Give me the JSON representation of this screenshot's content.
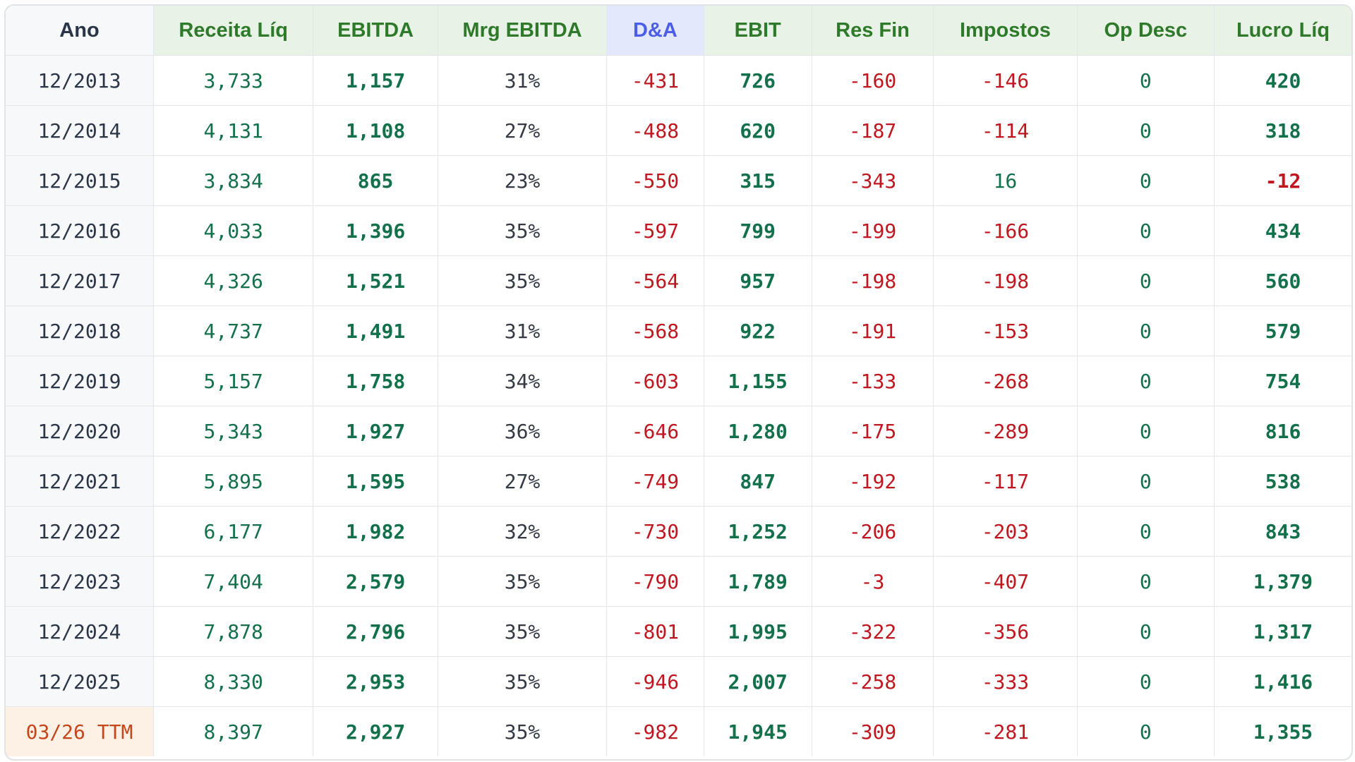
{
  "headers": [
    "Ano",
    "Receita Líq",
    "EBITDA",
    "Mrg EBITDA",
    "D&A",
    "EBIT",
    "Res Fin",
    "Impostos",
    "Op Desc",
    "Lucro Líq"
  ],
  "colors": {
    "header_green_bg": "#e8f2e6",
    "header_green_text": "#2f7a2a",
    "header_da_bg": "#e4e8fd",
    "header_da_text": "#4d5ee6",
    "positive": "#12714a",
    "negative": "#c0161f",
    "neutral": "#333a44",
    "ttm_bg": "#fdf1e6",
    "ttm_text": "#c4471c"
  },
  "rows": [
    {
      "ano": "12/2013",
      "receita": "3,733",
      "ebitda": "1,157",
      "mrg": "31%",
      "da": "-431",
      "ebit": "726",
      "resfin": "-160",
      "impostos": "-146",
      "opdesc": "0",
      "lucro": "420"
    },
    {
      "ano": "12/2014",
      "receita": "4,131",
      "ebitda": "1,108",
      "mrg": "27%",
      "da": "-488",
      "ebit": "620",
      "resfin": "-187",
      "impostos": "-114",
      "opdesc": "0",
      "lucro": "318"
    },
    {
      "ano": "12/2015",
      "receita": "3,834",
      "ebitda": "865",
      "mrg": "23%",
      "da": "-550",
      "ebit": "315",
      "resfin": "-343",
      "impostos": "16",
      "opdesc": "0",
      "lucro": "-12"
    },
    {
      "ano": "12/2016",
      "receita": "4,033",
      "ebitda": "1,396",
      "mrg": "35%",
      "da": "-597",
      "ebit": "799",
      "resfin": "-199",
      "impostos": "-166",
      "opdesc": "0",
      "lucro": "434"
    },
    {
      "ano": "12/2017",
      "receita": "4,326",
      "ebitda": "1,521",
      "mrg": "35%",
      "da": "-564",
      "ebit": "957",
      "resfin": "-198",
      "impostos": "-198",
      "opdesc": "0",
      "lucro": "560"
    },
    {
      "ano": "12/2018",
      "receita": "4,737",
      "ebitda": "1,491",
      "mrg": "31%",
      "da": "-568",
      "ebit": "922",
      "resfin": "-191",
      "impostos": "-153",
      "opdesc": "0",
      "lucro": "579"
    },
    {
      "ano": "12/2019",
      "receita": "5,157",
      "ebitda": "1,758",
      "mrg": "34%",
      "da": "-603",
      "ebit": "1,155",
      "resfin": "-133",
      "impostos": "-268",
      "opdesc": "0",
      "lucro": "754"
    },
    {
      "ano": "12/2020",
      "receita": "5,343",
      "ebitda": "1,927",
      "mrg": "36%",
      "da": "-646",
      "ebit": "1,280",
      "resfin": "-175",
      "impostos": "-289",
      "opdesc": "0",
      "lucro": "816"
    },
    {
      "ano": "12/2021",
      "receita": "5,895",
      "ebitda": "1,595",
      "mrg": "27%",
      "da": "-749",
      "ebit": "847",
      "resfin": "-192",
      "impostos": "-117",
      "opdesc": "0",
      "lucro": "538"
    },
    {
      "ano": "12/2022",
      "receita": "6,177",
      "ebitda": "1,982",
      "mrg": "32%",
      "da": "-730",
      "ebit": "1,252",
      "resfin": "-206",
      "impostos": "-203",
      "opdesc": "0",
      "lucro": "843"
    },
    {
      "ano": "12/2023",
      "receita": "7,404",
      "ebitda": "2,579",
      "mrg": "35%",
      "da": "-790",
      "ebit": "1,789",
      "resfin": "-3",
      "impostos": "-407",
      "opdesc": "0",
      "lucro": "1,379"
    },
    {
      "ano": "12/2024",
      "receita": "7,878",
      "ebitda": "2,796",
      "mrg": "35%",
      "da": "-801",
      "ebit": "1,995",
      "resfin": "-322",
      "impostos": "-356",
      "opdesc": "0",
      "lucro": "1,317"
    },
    {
      "ano": "12/2025",
      "receita": "8,330",
      "ebitda": "2,953",
      "mrg": "35%",
      "da": "-946",
      "ebit": "2,007",
      "resfin": "-258",
      "impostos": "-333",
      "opdesc": "0",
      "lucro": "1,416"
    },
    {
      "ano": "03/26 TTM",
      "receita": "8,397",
      "ebitda": "2,927",
      "mrg": "35%",
      "da": "-982",
      "ebit": "1,945",
      "resfin": "-309",
      "impostos": "-281",
      "opdesc": "0",
      "lucro": "1,355",
      "ttm": true
    }
  ]
}
